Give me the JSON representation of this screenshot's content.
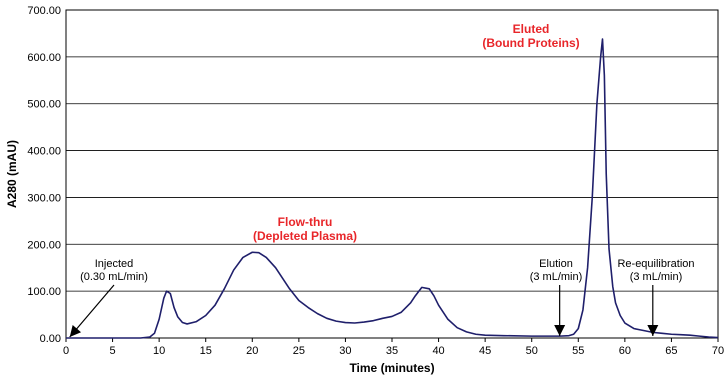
{
  "chart_data": {
    "type": "line",
    "title": "",
    "xlabel": "Time (minutes)",
    "ylabel": "A280 (mAU)",
    "xlim": [
      0,
      70
    ],
    "ylim": [
      0,
      700
    ],
    "grid": "horizontal",
    "x_ticks": [
      "0",
      "5",
      "10",
      "15",
      "20",
      "25",
      "30",
      "35",
      "40",
      "45",
      "50",
      "55",
      "60",
      "65",
      "70"
    ],
    "y_ticks": [
      "0.00",
      "100.00",
      "200.00",
      "300.00",
      "400.00",
      "500.00",
      "600.00",
      "700.00"
    ],
    "series": [
      {
        "x": [
          0,
          5,
          8,
          9,
          9.5,
          10,
          10.5,
          10.8,
          11.2,
          11.6,
          12,
          12.5,
          13,
          14,
          15,
          16,
          17,
          18,
          19,
          20,
          20.7,
          21.5,
          22.5,
          24,
          25,
          26,
          27,
          28,
          29,
          30,
          31,
          32,
          33,
          34,
          35,
          36,
          37,
          37.5,
          38.2,
          39,
          39.5,
          40,
          41,
          42,
          43,
          44,
          45,
          47,
          50,
          53,
          54,
          54.5,
          55,
          55.5,
          56,
          56.5,
          57,
          57.4,
          57.6,
          57.8,
          58,
          58.3,
          58.7,
          59,
          59.5,
          60,
          61,
          62,
          63,
          64,
          65,
          66,
          67,
          68,
          69,
          70
        ],
        "y": [
          0,
          0,
          0,
          2,
          10,
          40,
          85,
          100,
          95,
          65,
          45,
          33,
          30,
          35,
          48,
          70,
          105,
          145,
          172,
          183,
          182,
          172,
          150,
          105,
          80,
          65,
          52,
          42,
          36,
          33,
          32,
          34,
          37,
          42,
          46,
          55,
          75,
          90,
          108,
          105,
          90,
          70,
          40,
          22,
          13,
          8,
          6,
          5,
          4,
          4,
          5,
          8,
          20,
          60,
          150,
          300,
          500,
          600,
          638,
          560,
          350,
          190,
          110,
          75,
          48,
          32,
          20,
          16,
          12,
          10,
          8,
          7,
          6,
          4,
          2,
          1
        ]
      }
    ],
    "annotations": [
      {
        "text": "Injected",
        "x": 0,
        "y": 0
      },
      {
        "text": "(0.30 mL/min)",
        "x": 0,
        "y": 0
      },
      {
        "text": "Flow-thru",
        "x": 20.7,
        "y": 183
      },
      {
        "text": "(Depleted Plasma)",
        "x": 20.7,
        "y": 183
      },
      {
        "text": "Elution",
        "x": 53,
        "y": 0
      },
      {
        "text": "(3 mL/min)",
        "x": 53,
        "y": 0
      },
      {
        "text": "Re-equilibration",
        "x": 63,
        "y": 0
      },
      {
        "text": "(3 mL/min)",
        "x": 63,
        "y": 0
      },
      {
        "text": "Eluted",
        "x": 57.6,
        "y": 638
      },
      {
        "text": "(Bound Proteins)",
        "x": 57.6,
        "y": 638
      }
    ],
    "colors": {
      "line": "#1f1f6b",
      "highlight_text": "#e8262a",
      "arrow": "#000000"
    }
  }
}
